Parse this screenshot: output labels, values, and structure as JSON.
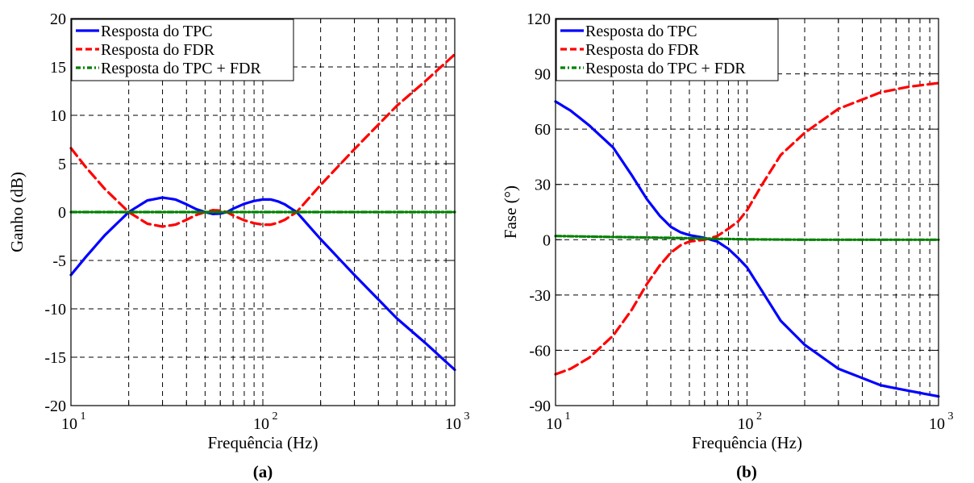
{
  "colors": {
    "tpc": "#0000ff",
    "fdr": "#ff0000",
    "sum": "#008000",
    "axes": "#000000",
    "grid": "#000000"
  },
  "chart_data": [
    {
      "panel": "(a)",
      "type": "line",
      "xscale": "log",
      "xlabel": "Frequência (Hz)",
      "ylabel": "Ganho (dB)",
      "xlim": [
        10,
        1000
      ],
      "ylim": [
        -20,
        20
      ],
      "xticks": [
        {
          "base": "10",
          "exp": "1"
        },
        {
          "base": "10",
          "exp": "2"
        },
        {
          "base": "10",
          "exp": "3"
        }
      ],
      "yticks": [
        "-20",
        "-15",
        "-10",
        "-5",
        "0",
        "5",
        "10",
        "15",
        "20"
      ],
      "grid": true,
      "legend_position": "top-left",
      "series": [
        {
          "name": "Resposta do TPC",
          "color": "#0000ff",
          "style": "solid",
          "x": [
            10,
            12,
            15,
            20,
            25,
            30,
            35,
            40,
            45,
            50,
            55,
            60,
            65,
            70,
            80,
            90,
            100,
            110,
            120,
            130,
            150,
            200,
            300,
            500,
            700,
            1000
          ],
          "y": [
            -6.5,
            -4.6,
            -2.4,
            0,
            1.2,
            1.5,
            1.3,
            0.8,
            0.3,
            0,
            -0.2,
            -0.15,
            0,
            0.35,
            0.85,
            1.15,
            1.3,
            1.3,
            1.1,
            0.8,
            0,
            -2.8,
            -6.5,
            -11,
            -13.5,
            -16.3
          ]
        },
        {
          "name": "Resposta do FDR",
          "color": "#ff0000",
          "style": "dashed",
          "x": [
            10,
            12,
            15,
            20,
            25,
            30,
            35,
            40,
            45,
            50,
            55,
            60,
            65,
            70,
            80,
            90,
            100,
            110,
            120,
            130,
            150,
            200,
            300,
            500,
            700,
            1000
          ],
          "y": [
            6.6,
            4.6,
            2.4,
            0,
            -1.2,
            -1.5,
            -1.3,
            -0.8,
            -0.3,
            0,
            0.2,
            0.15,
            0,
            -0.35,
            -0.85,
            -1.15,
            -1.3,
            -1.3,
            -1.1,
            -0.8,
            0,
            2.8,
            6.5,
            11,
            13.5,
            16.3
          ]
        },
        {
          "name": "Resposta do TPC + FDR",
          "color": "#008000",
          "style": "dash-dot",
          "x": [
            10,
            1000
          ],
          "y": [
            0,
            0
          ]
        }
      ]
    },
    {
      "panel": "(b)",
      "type": "line",
      "xscale": "log",
      "xlabel": "Frequência (Hz)",
      "ylabel": "Fase (°)",
      "xlim": [
        10,
        1000
      ],
      "ylim": [
        -90,
        120
      ],
      "xticks": [
        {
          "base": "10",
          "exp": "1"
        },
        {
          "base": "10",
          "exp": "2"
        },
        {
          "base": "10",
          "exp": "3"
        }
      ],
      "yticks": [
        "-90",
        "-60",
        "-30",
        "0",
        "30",
        "60",
        "90",
        "120"
      ],
      "grid": true,
      "legend_position": "top-left",
      "series": [
        {
          "name": "Resposta do TPC",
          "color": "#0000ff",
          "style": "solid",
          "x": [
            10,
            12,
            15,
            20,
            25,
            30,
            35,
            40,
            45,
            50,
            60,
            70,
            80,
            90,
            100,
            120,
            150,
            200,
            300,
            500,
            700,
            1000
          ],
          "y": [
            75,
            70,
            62,
            50,
            35,
            22,
            13,
            7,
            4,
            2.5,
            1,
            -1,
            -5,
            -10,
            -15,
            -28,
            -44,
            -57,
            -70,
            -79,
            -82,
            -85
          ]
        },
        {
          "name": "Resposta do FDR",
          "color": "#ff0000",
          "style": "dashed",
          "x": [
            10,
            12,
            15,
            20,
            25,
            30,
            35,
            40,
            45,
            50,
            60,
            70,
            80,
            90,
            100,
            120,
            150,
            200,
            300,
            500,
            700,
            1000
          ],
          "y": [
            -73,
            -70,
            -64,
            -52,
            -38,
            -24,
            -14,
            -7,
            -3,
            -1,
            0,
            2,
            6,
            10,
            16,
            30,
            46,
            58,
            71,
            80,
            83,
            85
          ]
        },
        {
          "name": "Resposta do TPC + FDR",
          "color": "#008000",
          "style": "dash-dot",
          "x": [
            10,
            20,
            40,
            70,
            100,
            200,
            500,
            1000
          ],
          "y": [
            2,
            1.5,
            1,
            0.5,
            0.2,
            0,
            0,
            0
          ]
        }
      ]
    }
  ]
}
